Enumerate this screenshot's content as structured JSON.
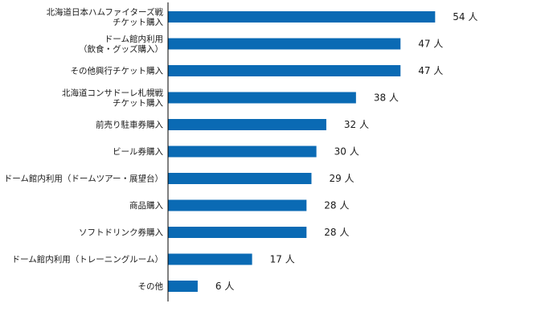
{
  "chart_data": {
    "type": "bar",
    "orientation": "horizontal",
    "title": "",
    "xlabel": "",
    "ylabel": "",
    "unit": "人",
    "xlim": [
      0,
      65
    ],
    "grid": false,
    "legend": "none",
    "bar_color": "#0a6ab4",
    "categories": [
      [
        "北海道日本ハムファイターズ戦",
        "チケット購入"
      ],
      [
        "ドーム館内利用",
        "（飲食・グッズ購入）"
      ],
      [
        "その他興行チケット購入"
      ],
      [
        "北海道コンサドーレ札幌戦",
        "チケット購入"
      ],
      [
        "前売り駐車券購入"
      ],
      [
        "ビール券購入"
      ],
      [
        "ドーム館内利用（ドームツアー・展望台）"
      ],
      [
        "商品購入"
      ],
      [
        "ソフトドリンク券購入"
      ],
      [
        "ドーム館内利用（トレーニングルーム）"
      ],
      [
        "その他"
      ]
    ],
    "values": [
      54,
      47,
      47,
      38,
      32,
      30,
      29,
      28,
      28,
      17,
      6
    ],
    "value_labels": [
      "54 人",
      "47 人",
      "47 人",
      "38 人",
      "32 人",
      "30 人",
      "29 人",
      "28 人",
      "28 人",
      "17 人",
      "6 人"
    ]
  }
}
